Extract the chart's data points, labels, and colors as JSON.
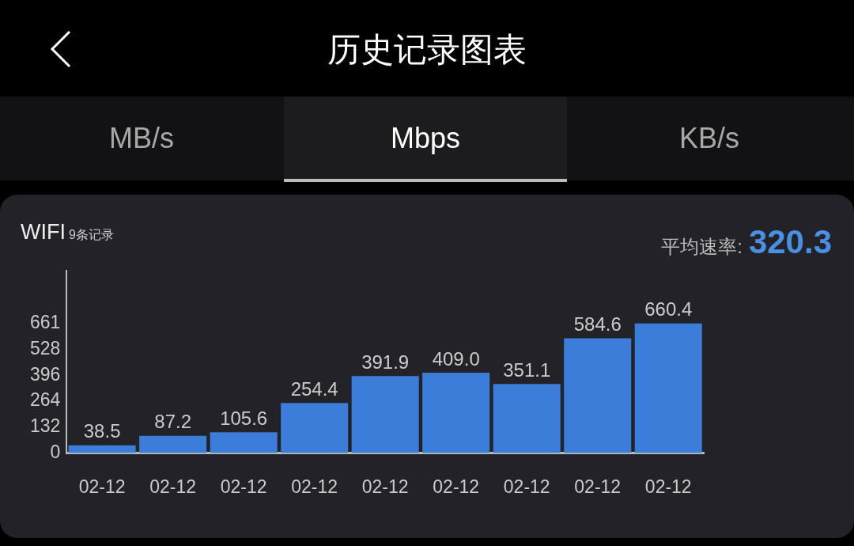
{
  "chart_data": {
    "type": "bar",
    "title": "历史记录图表",
    "subtitle": "WIFI",
    "annotations": [
      "MB/s",
      "Mbps",
      "KB/s",
      "9条记录",
      "平均速率:",
      "320.3"
    ],
    "categories": [
      "02-12",
      "02-12",
      "02-12",
      "02-12",
      "02-12",
      "02-12",
      "02-12",
      "02-12",
      "02-12"
    ],
    "values": [
      38.5,
      87.2,
      105.6,
      254.4,
      391.9,
      409.0,
      351.1,
      584.6,
      660.4
    ],
    "value_labels": [
      "38.5",
      "87.2",
      "105.6",
      "254.4",
      "391.9",
      "409.0",
      "351.1",
      "584.6",
      "660.4"
    ],
    "color": "#3b7dd8",
    "ylim": [
      0,
      930
    ],
    "yticks": [
      0,
      132,
      264,
      396,
      528,
      661
    ],
    "grid": false
  }
}
